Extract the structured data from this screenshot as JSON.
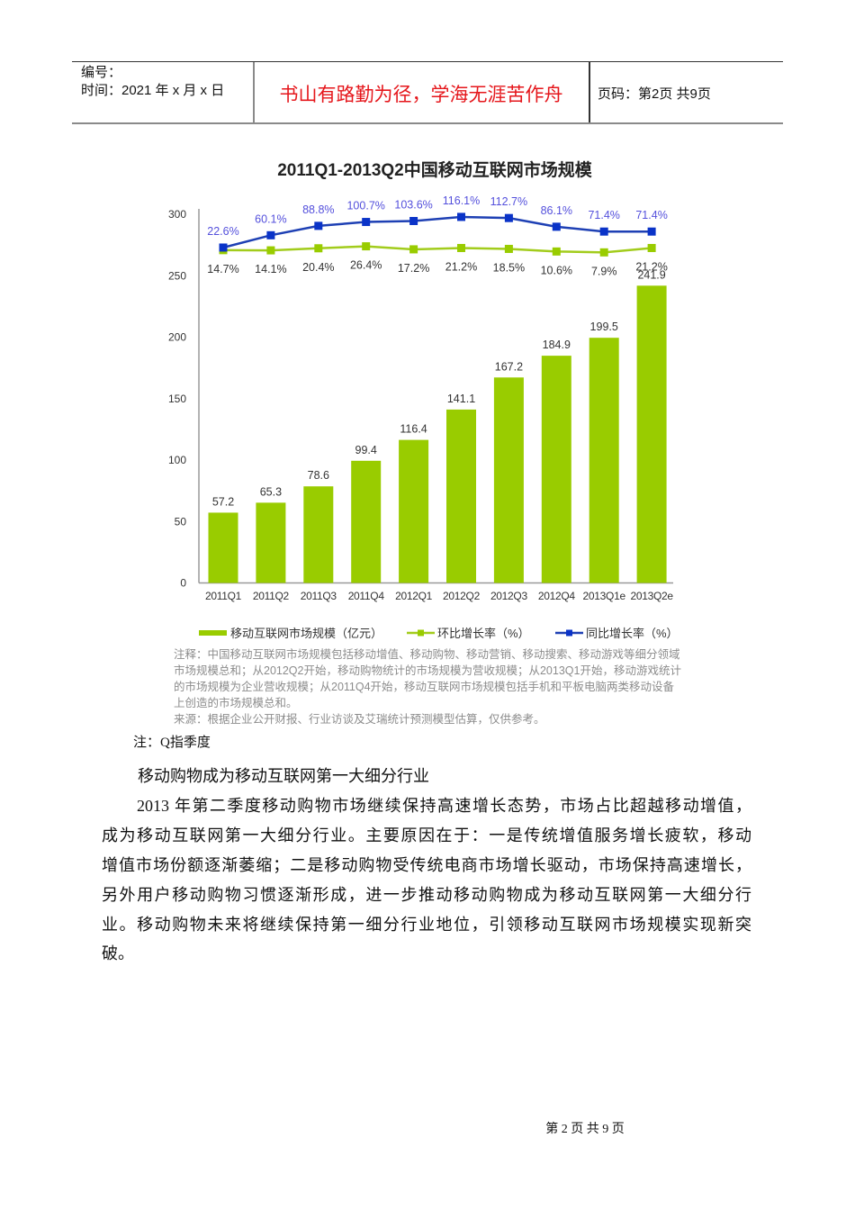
{
  "header": {
    "id_label": "编号：",
    "date_label": "时间：2021 年 x 月 x 日",
    "motto": "书山有路勤为径，学海无涯苦作舟",
    "page_info": "页码：第2页 共9页"
  },
  "colors": {
    "bar": "#99cc00",
    "green_line": "#a2cc1c",
    "green_marker": "#99cc00",
    "blue_line": "#1e40b4",
    "blue_marker": "#0a33c8",
    "motto_red": "#e5161b"
  },
  "chart_data": {
    "type": "bar",
    "title": "2011Q1-2013Q2中国移动互联网市场规模",
    "categories": [
      "2011Q1",
      "2011Q2",
      "2011Q3",
      "2011Q4",
      "2012Q1",
      "2012Q2",
      "2012Q3",
      "2012Q4",
      "2013Q1e",
      "2013Q2e"
    ],
    "series": [
      {
        "name": "移动互联网市场规模（亿元）",
        "type": "bar",
        "axis": "primary",
        "values": [
          57.2,
          65.3,
          78.6,
          99.4,
          116.4,
          141.1,
          167.2,
          184.9,
          199.5,
          241.9
        ]
      },
      {
        "name": "环比增长率（%）",
        "type": "line",
        "axis": "secondary",
        "values": [
          14.7,
          14.1,
          20.4,
          26.4,
          17.2,
          21.2,
          18.5,
          10.6,
          7.9,
          21.2
        ]
      },
      {
        "name": "同比增长率（%）",
        "type": "line",
        "axis": "secondary",
        "values": [
          22.6,
          60.1,
          88.8,
          100.7,
          103.6,
          116.1,
          112.7,
          86.1,
          71.4,
          71.4
        ]
      }
    ],
    "yticks": [
      0,
      50,
      100,
      150,
      200,
      250,
      300
    ],
    "ylim": [
      0,
      300
    ],
    "xlabel": "",
    "ylabel": "",
    "grid": false,
    "legend_position": "bottom"
  },
  "chart_notes": {
    "lines": [
      "注释：中国移动互联网市场规模包括移动增值、移动购物、移动营销、移动搜索、移动游戏等细分领域",
      "市场规模总和；从2012Q2开始，移动购物统计的市场规模为营收规模；从2013Q1开始，移动游戏统计",
      "的市场规模为企业营收规模；从2011Q4开始，移动互联网市场规模包括手机和平板电脑两类移动设备",
      "上创造的市场规模总和。",
      "来源：根据企业公开财报、行业访谈及艾瑞统计预测模型估算，仅供参考。"
    ]
  },
  "body": {
    "note": "注：Q指季度",
    "heading": "移动购物成为移动互联网第一大细分行业",
    "paragraph_lines": [
      "2013 年第二季度移动购物市场继续保持高速增长态势，市场占比超越移动增值，",
      "成为移动互联网第一大细分行业。主要原因在于：一是传统增值服务增长疲软，移动",
      "增值市场份额逐渐萎缩；二是移动购物受传统电商市场增长驱动，市场保持高速增长，",
      "另外用户移动购物习惯逐渐形成，进一步推动移动购物成为移动互联网第一大细分行",
      "业。移动购物未来将继续保持第一细分行业地位，引领移动互联网市场规模实现新突",
      "破。"
    ]
  },
  "footer": {
    "page_label": "第 2 页 共 9 页"
  }
}
